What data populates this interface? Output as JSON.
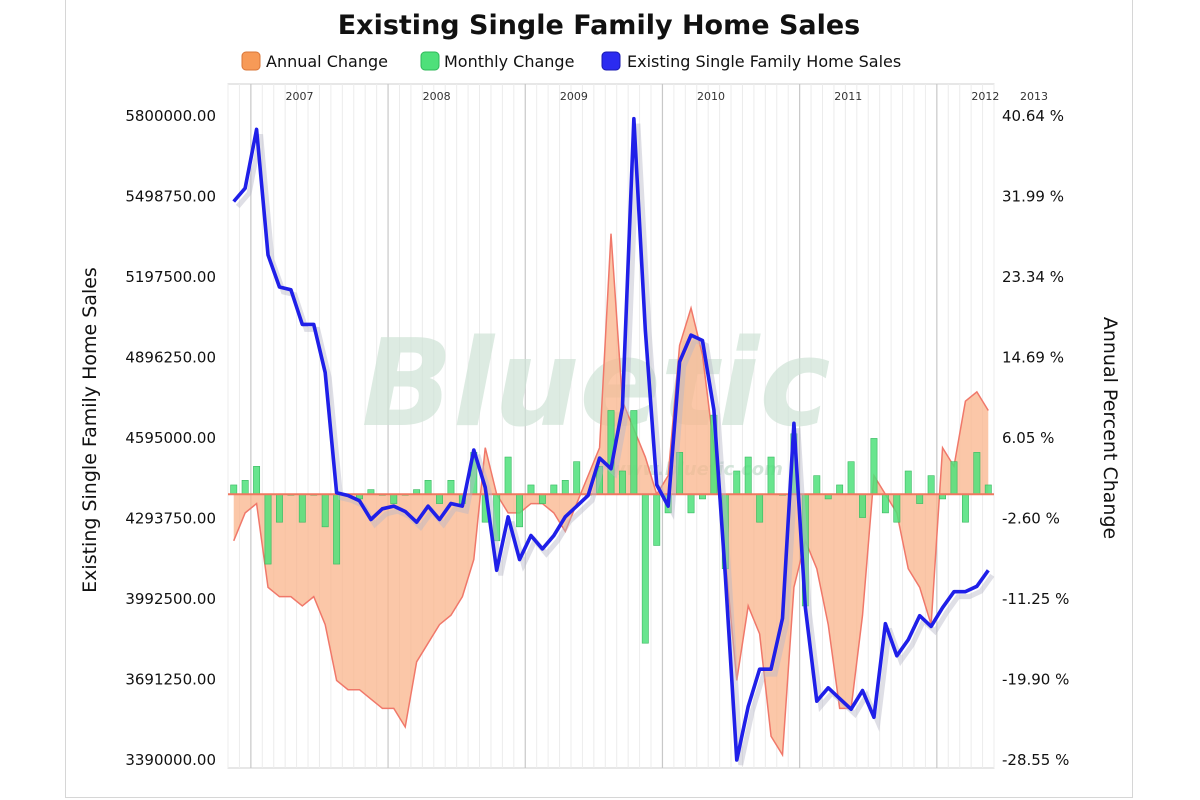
{
  "chart_data": {
    "type": "bar+area+line",
    "title": "Existing Single Family Home Sales",
    "legend": [
      {
        "name": "Annual Change",
        "color": "#f79a57"
      },
      {
        "name": "Monthly Change",
        "color": "#4ee07a"
      },
      {
        "name": "Existing Single Family Home Sales",
        "color": "#2b2bf0"
      }
    ],
    "legend_position": "top",
    "ylabel_left": "Existing Single Family Home Sales",
    "ylabel_right": "Annual Percent Change",
    "y_left": {
      "ticks": [
        "5800000.00",
        "5498750.00",
        "5197500.00",
        "4896250.00",
        "4595000.00",
        "4293750.00",
        "3992500.00",
        "3691250.00",
        "3390000.00"
      ],
      "range": [
        3390000,
        5800000
      ]
    },
    "y_right": {
      "ticks": [
        "40.64 %",
        "31.99 %",
        "23.34 %",
        "14.69 %",
        "6.05 %",
        "-2.60 %",
        "-11.25 %",
        "-19.90 %",
        "-28.55 %"
      ],
      "range": [
        -28.55,
        40.64
      ]
    },
    "x_year_labels": [
      "2007",
      "2008",
      "2009",
      "2010",
      "2011",
      "2012",
      "2013"
    ],
    "watermark": "Bluetic",
    "watermark_url": "www.bluetic.com",
    "grid": true,
    "x_months": 67,
    "series": [
      {
        "name": "Existing Single Family Home Sales",
        "axis": "left",
        "values": [
          5480000,
          5530000,
          5750000,
          5280000,
          5160000,
          5150000,
          5020000,
          5020000,
          4840000,
          4390000,
          4380000,
          4360000,
          4290000,
          4330000,
          4340000,
          4320000,
          4280000,
          4340000,
          4290000,
          4350000,
          4340000,
          4550000,
          4410000,
          4100000,
          4300000,
          4140000,
          4230000,
          4180000,
          4230000,
          4300000,
          4340000,
          4380000,
          4520000,
          4480000,
          4710000,
          5790000,
          5000000,
          4420000,
          4340000,
          4880000,
          4980000,
          4960000,
          4700000,
          4080000,
          3390000,
          3590000,
          3730000,
          3730000,
          3920000,
          4650000,
          3960000,
          3610000,
          3660000,
          3620000,
          3580000,
          3650000,
          3550000,
          3900000,
          3780000,
          3840000,
          3930000,
          3890000,
          3960000,
          4020000,
          4020000,
          4040000,
          4100000
        ]
      },
      {
        "name": "Annual Change",
        "axis": "right",
        "values": [
          -5,
          -2,
          -1,
          -10,
          -11,
          -11,
          -12,
          -11,
          -14,
          -20,
          -21,
          -21,
          -22,
          -23,
          -23,
          -25,
          -18,
          -16,
          -14,
          -13,
          -11,
          -7,
          5,
          0,
          -2,
          -2,
          -1,
          -1,
          -2,
          -4,
          -1,
          2,
          5,
          28,
          10,
          7,
          4,
          0,
          2,
          16,
          20,
          15,
          5,
          -7,
          -20,
          -12,
          -15,
          -26,
          -28,
          -10,
          -5,
          -8,
          -14,
          -23,
          -23,
          -13,
          2,
          0,
          -2,
          -8,
          -10,
          -14,
          5,
          3,
          10,
          11,
          9
        ]
      },
      {
        "name": "Monthly Change",
        "axis": "right",
        "values": [
          1,
          1.5,
          3,
          -7.5,
          -3,
          0,
          -3,
          0,
          -3.5,
          -7.5,
          0,
          -0.5,
          0.5,
          0,
          -1,
          0,
          0.5,
          1.5,
          -1,
          1.5,
          -1,
          4.5,
          -3,
          -5,
          4,
          -3.5,
          1,
          -1,
          1,
          1.5,
          3.5,
          0,
          3,
          9,
          2.5,
          9,
          -16,
          -5.5,
          -2,
          4.5,
          -2,
          -0.5,
          8.5,
          -8,
          2.5,
          4,
          -3,
          4,
          0,
          6.5,
          -12,
          2,
          -0.5,
          1,
          3.5,
          -2.5,
          6,
          -2,
          -3,
          2.5,
          -1,
          2,
          -0.5,
          3.5,
          -3,
          4.5,
          1
        ]
      }
    ]
  }
}
